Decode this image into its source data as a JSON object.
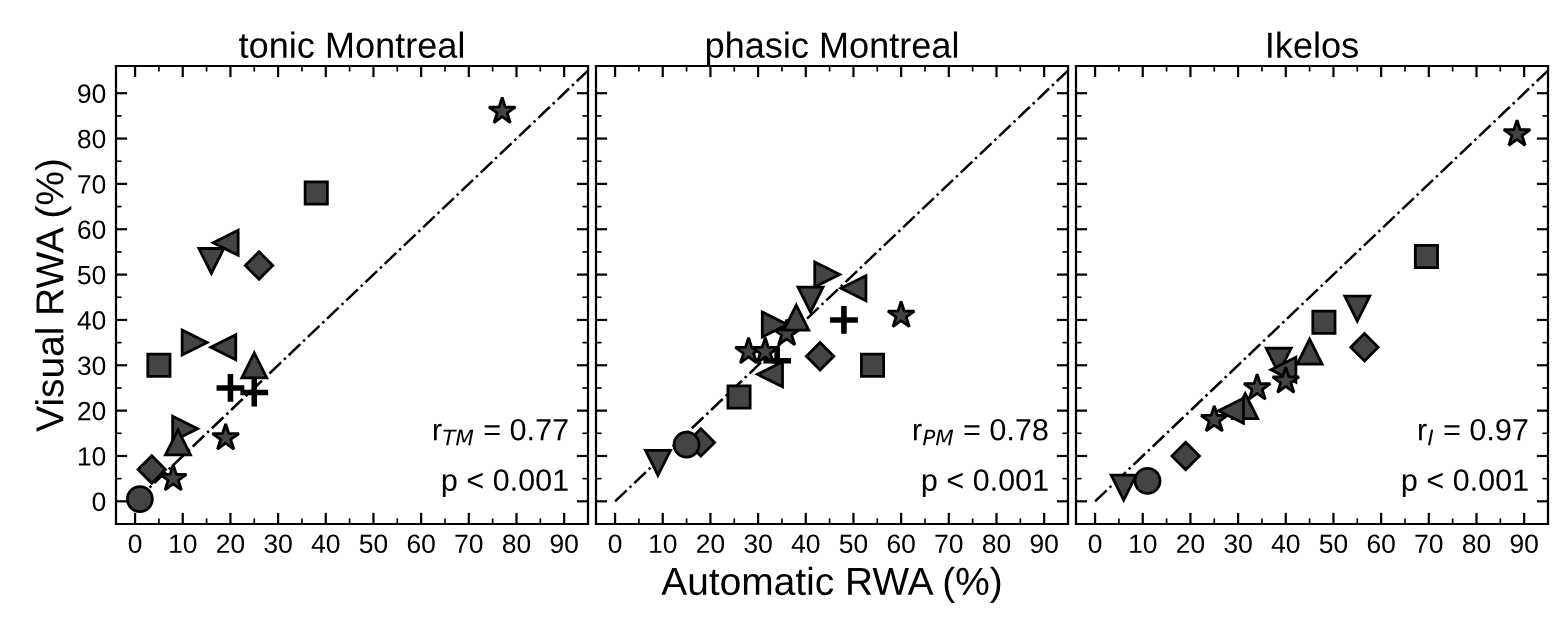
{
  "chart_data": [
    {
      "type": "scatter",
      "title": "tonic Montreal",
      "ylabel": "Visual RWA (%)",
      "xlim": [
        -4,
        95
      ],
      "ylim": [
        -5,
        96
      ],
      "xticks": [
        0,
        10,
        20,
        30,
        40,
        50,
        60,
        70,
        80,
        90
      ],
      "yticks": [
        0,
        10,
        20,
        30,
        40,
        50,
        60,
        70,
        80,
        90
      ],
      "grid": false,
      "legend": false,
      "annotations": [
        "r$_{TM}$ = 0.77",
        "p < 0.001"
      ],
      "series": [
        {
          "color": "#444444",
          "marker": "star",
          "x": [
            77
          ],
          "values": [
            86
          ]
        },
        {
          "color": "#444444",
          "marker": "square",
          "x": [
            38,
            5
          ],
          "values": [
            68,
            30
          ]
        },
        {
          "color": "#444444",
          "marker": "triangle-left",
          "x": [
            19,
            18.5
          ],
          "values": [
            57,
            34
          ]
        },
        {
          "color": "#444444",
          "marker": "triangle-down",
          "x": [
            16
          ],
          "values": [
            53
          ]
        },
        {
          "color": "#444444",
          "marker": "diamond",
          "x": [
            26,
            3.5
          ],
          "values": [
            52,
            7
          ]
        },
        {
          "color": "#444444",
          "marker": "triangle-right",
          "x": [
            12.5,
            10.5
          ],
          "values": [
            35,
            16
          ]
        },
        {
          "color": "#444444",
          "marker": "triangle",
          "x": [
            25,
            9
          ],
          "values": [
            30,
            13
          ]
        },
        {
          "color": "#000000",
          "marker": "cross",
          "x": [
            20,
            25
          ],
          "values": [
            25,
            24
          ]
        },
        {
          "color": "#444444",
          "marker": "star",
          "x": [
            19,
            8
          ],
          "values": [
            14,
            5
          ]
        },
        {
          "color": "#444444",
          "marker": "circle",
          "x": [
            1
          ],
          "values": [
            0.5
          ]
        },
        {
          "type": "line",
          "color": "#000000",
          "line_style": "dashdot",
          "marker": "none",
          "x": [
            0,
            95
          ],
          "values": [
            0,
            95
          ]
        }
      ]
    },
    {
      "type": "scatter",
      "title": "phasic Montreal",
      "xlabel": "Automatic RWA (%)",
      "xlim": [
        -4,
        95
      ],
      "ylim": [
        -5,
        96
      ],
      "xticks": [
        0,
        10,
        20,
        30,
        40,
        50,
        60,
        70,
        80,
        90
      ],
      "yticks": [
        0,
        10,
        20,
        30,
        40,
        50,
        60,
        70,
        80,
        90
      ],
      "tick_labels": "x",
      "grid": false,
      "legend": false,
      "annotations": [
        "r$_{PM}$ = 0.78",
        "p < 0.001"
      ],
      "series": [
        {
          "color": "#444444",
          "marker": "star",
          "x": [
            60,
            36
          ],
          "values": [
            41,
            37
          ]
        },
        {
          "color": "#444444",
          "marker": "square",
          "x": [
            54,
            26
          ],
          "values": [
            30,
            23
          ]
        },
        {
          "color": "#000000",
          "marker": "cross",
          "x": [
            48,
            34
          ],
          "values": [
            40,
            31
          ]
        },
        {
          "color": "#444444",
          "marker": "triangle-left",
          "x": [
            50,
            32.5
          ],
          "values": [
            47,
            28
          ]
        },
        {
          "color": "#444444",
          "marker": "triangle-right",
          "x": [
            44.5,
            33.5
          ],
          "values": [
            50,
            39
          ]
        },
        {
          "color": "#444444",
          "marker": "triangle-down",
          "x": [
            41,
            9
          ],
          "values": [
            44.5,
            8.5
          ]
        },
        {
          "color": "#444444",
          "marker": "triangle",
          "x": [
            38
          ],
          "values": [
            40.5
          ]
        },
        {
          "color": "#444444",
          "marker": "diamond",
          "x": [
            43,
            18
          ],
          "values": [
            32,
            13
          ]
        },
        {
          "color": "#444444",
          "marker": "star",
          "x": [
            28,
            31.5
          ],
          "values": [
            33,
            33
          ]
        },
        {
          "color": "#444444",
          "marker": "circle",
          "x": [
            15
          ],
          "values": [
            12.5
          ]
        },
        {
          "type": "line",
          "color": "#000000",
          "line_style": "dashdot",
          "marker": "none",
          "x": [
            0,
            95
          ],
          "values": [
            0,
            95
          ]
        }
      ]
    },
    {
      "type": "scatter",
      "title": "Ikelos",
      "xlim": [
        -4,
        95
      ],
      "ylim": [
        -5,
        96
      ],
      "xticks": [
        0,
        10,
        20,
        30,
        40,
        50,
        60,
        70,
        80,
        90
      ],
      "yticks": [
        0,
        10,
        20,
        30,
        40,
        50,
        60,
        70,
        80,
        90
      ],
      "tick_labels": "x",
      "grid": false,
      "legend": false,
      "annotations": [
        "r$_{I}$ = 0.97",
        "p < 0.001"
      ],
      "series": [
        {
          "color": "#444444",
          "marker": "star",
          "x": [
            88.5,
            34
          ],
          "values": [
            81,
            25
          ]
        },
        {
          "color": "#444444",
          "marker": "square",
          "x": [
            69.5,
            48
          ],
          "values": [
            54,
            39.5
          ]
        },
        {
          "color": "#444444",
          "marker": "triangle-down",
          "x": [
            55,
            38.5,
            6
          ],
          "values": [
            42.5,
            31,
            3
          ]
        },
        {
          "color": "#444444",
          "marker": "diamond",
          "x": [
            56.5,
            19
          ],
          "values": [
            34,
            10
          ]
        },
        {
          "color": "#444444",
          "marker": "triangle",
          "x": [
            45,
            31.5
          ],
          "values": [
            33,
            21
          ]
        },
        {
          "color": "#444444",
          "marker": "triangle-left",
          "x": [
            39.5,
            28.5
          ],
          "values": [
            29,
            20
          ]
        },
        {
          "color": "#444444",
          "marker": "star",
          "x": [
            40,
            25
          ],
          "values": [
            26.5,
            18
          ]
        },
        {
          "color": "#444444",
          "marker": "circle",
          "x": [
            11
          ],
          "values": [
            4.5
          ]
        },
        {
          "type": "line",
          "color": "#000000",
          "line_style": "dashdot",
          "marker": "none",
          "x": [
            0,
            95
          ],
          "values": [
            0,
            95
          ]
        }
      ]
    }
  ]
}
